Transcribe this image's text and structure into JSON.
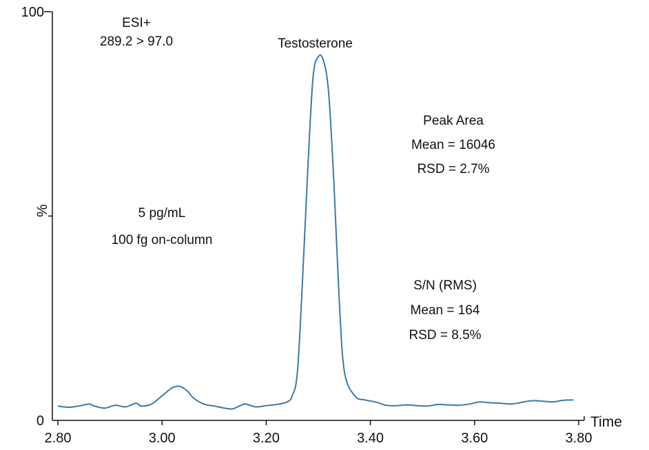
{
  "chart_data": {
    "type": "line",
    "xlabel": "Time",
    "ylabel": "%",
    "xlim": [
      2.8,
      3.8
    ],
    "ylim": [
      0,
      100
    ],
    "x_ticks": [
      "2.80",
      "3.00",
      "3.20",
      "3.40",
      "3.60",
      "3.80"
    ],
    "y_ticks": [
      "0",
      "100"
    ],
    "grid": false,
    "series": [
      {
        "color": "#3b78a8",
        "x": [
          2.8,
          2.82,
          2.84,
          2.86,
          2.87,
          2.89,
          2.91,
          2.93,
          2.95,
          2.96,
          2.98,
          3.0,
          3.02,
          3.035,
          3.05,
          3.06,
          3.08,
          3.1,
          3.12,
          3.135,
          3.15,
          3.16,
          3.18,
          3.2,
          3.22,
          3.24,
          3.25,
          3.26,
          3.27,
          3.28,
          3.29,
          3.3,
          3.31,
          3.32,
          3.33,
          3.34,
          3.35,
          3.37,
          3.39,
          3.41,
          3.43,
          3.45,
          3.47,
          3.49,
          3.51,
          3.53,
          3.55,
          3.57,
          3.59,
          3.61,
          3.63,
          3.65,
          3.67,
          3.69,
          3.71,
          3.73,
          3.75,
          3.77,
          3.79
        ],
        "values": [
          3.5,
          3.2,
          3.5,
          4.0,
          3.5,
          3.0,
          3.7,
          3.3,
          4.2,
          3.5,
          4.0,
          6.0,
          8.0,
          8.3,
          7.0,
          5.5,
          4.0,
          3.5,
          3.0,
          2.8,
          3.6,
          4.0,
          3.3,
          3.6,
          3.9,
          4.5,
          6.0,
          12.0,
          35.0,
          62.0,
          84.0,
          89.0,
          88.0,
          80.0,
          58.0,
          30.0,
          12.0,
          6.0,
          5.0,
          4.5,
          3.7,
          3.6,
          3.8,
          3.6,
          3.5,
          3.9,
          3.8,
          3.7,
          4.0,
          4.5,
          4.3,
          4.2,
          4.0,
          4.4,
          4.8,
          4.7,
          4.5,
          4.9,
          5.0
        ]
      }
    ],
    "annotations": {
      "mode": [
        "ESI+",
        "289.2 > 97.0"
      ],
      "peak_name": "Testosterone",
      "peak_area": [
        "Peak Area",
        "Mean = 16046",
        "RSD = 2.7%"
      ],
      "concentration": [
        "5 pg/mL",
        "100 fg  on-column"
      ],
      "sn": [
        "S/N (RMS)",
        "Mean = 164",
        "RSD = 8.5%"
      ]
    }
  }
}
